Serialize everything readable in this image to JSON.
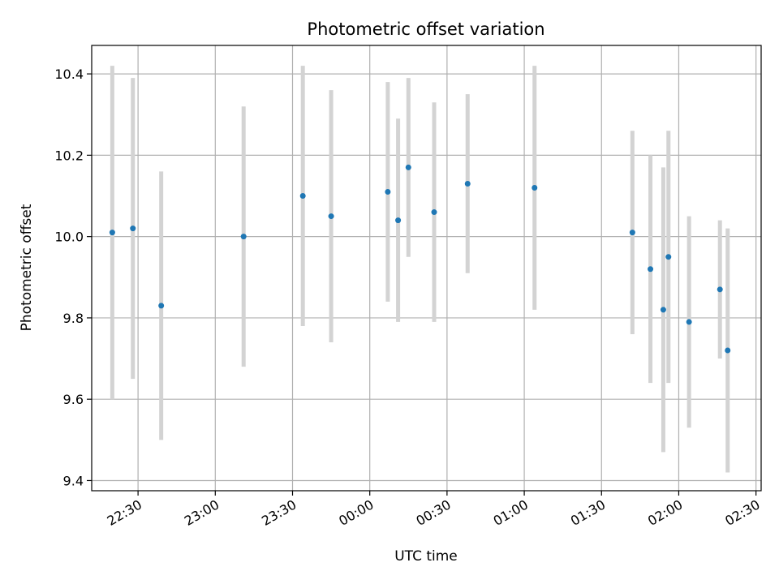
{
  "chart_data": {
    "type": "scatter",
    "title": "Photometric offset variation",
    "xlabel": "UTC time",
    "ylabel": "Photometric offset",
    "x_unit": "UTC time (HH:MM), spanning 22:12 to 02:32 across midnight",
    "xlim": [
      "22:12",
      "02:32"
    ],
    "ylim": [
      9.375,
      10.47
    ],
    "x_ticks": [
      "22:30",
      "23:00",
      "23:30",
      "00:00",
      "00:30",
      "01:00",
      "01:30",
      "02:00",
      "02:30"
    ],
    "y_ticks": [
      9.4,
      9.6,
      9.8,
      10.0,
      10.2,
      10.4
    ],
    "y_tick_labels": [
      "9.4",
      "9.6",
      "9.8",
      "10.0",
      "10.2",
      "10.4"
    ],
    "grid": true,
    "marker_color": "#1f77b4",
    "errorbar_color": "#d3d3d3",
    "points": [
      {
        "x": "22:20",
        "y": 10.01,
        "err": 0.41
      },
      {
        "x": "22:28",
        "y": 10.02,
        "err": 0.37
      },
      {
        "x": "22:39",
        "y": 9.83,
        "err": 0.33
      },
      {
        "x": "23:11",
        "y": 10.0,
        "err": 0.32
      },
      {
        "x": "23:34",
        "y": 10.1,
        "err": 0.32
      },
      {
        "x": "23:45",
        "y": 10.05,
        "err": 0.31
      },
      {
        "x": "00:07",
        "y": 10.11,
        "err": 0.27
      },
      {
        "x": "00:11",
        "y": 10.04,
        "err": 0.25
      },
      {
        "x": "00:15",
        "y": 10.17,
        "err": 0.22
      },
      {
        "x": "00:25",
        "y": 10.06,
        "err": 0.27
      },
      {
        "x": "00:38",
        "y": 10.13,
        "err": 0.22
      },
      {
        "x": "01:04",
        "y": 10.12,
        "err": 0.3
      },
      {
        "x": "01:42",
        "y": 10.01,
        "err": 0.25
      },
      {
        "x": "01:49",
        "y": 9.92,
        "err": 0.28
      },
      {
        "x": "01:54",
        "y": 9.82,
        "err": 0.35
      },
      {
        "x": "01:56",
        "y": 9.95,
        "err": 0.31
      },
      {
        "x": "02:04",
        "y": 9.79,
        "err": 0.26
      },
      {
        "x": "02:16",
        "y": 9.87,
        "err": 0.17
      },
      {
        "x": "02:19",
        "y": 9.72,
        "err": 0.3
      }
    ]
  }
}
